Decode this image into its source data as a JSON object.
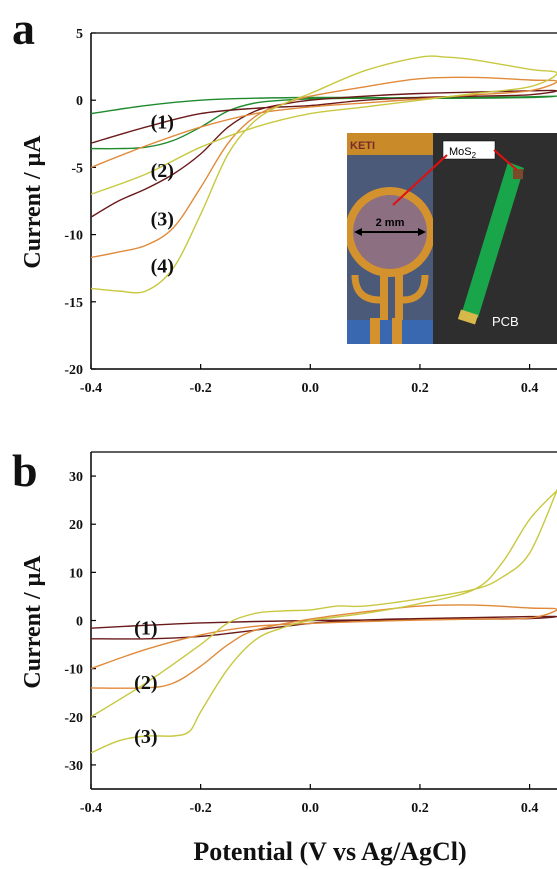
{
  "panels": {
    "a": {
      "label": "a"
    },
    "b": {
      "label": "b"
    }
  },
  "x_axis_label": "Potential (V vs Ag/AgCl)",
  "y_axis_label": "Current / μA",
  "inset": {
    "mos2_prefix": "MoS",
    "mos2_sub": "2",
    "scale_text": "2 mm",
    "pcb_text": "PCB",
    "keti_text": "KETI"
  },
  "colors": {
    "green": "#1f8a2e",
    "darkred": "#6b1a1a",
    "orange": "#e08a3a",
    "yellow": "#c8c840",
    "axis": "#000000"
  },
  "chart_data": [
    {
      "panel": "a",
      "type": "line",
      "xlabel": "",
      "ylabel": "Current / μA",
      "xlim": [
        -0.4,
        0.45
      ],
      "ylim": [
        -20,
        5
      ],
      "xticks": [
        -0.4,
        -0.2,
        0.0,
        0.2,
        0.4
      ],
      "xtick_labels": [
        "-0.4",
        "-0.2",
        "0.0",
        "0.2",
        "0.4"
      ],
      "yticks": [
        5,
        0,
        -5,
        -10,
        -15,
        -20
      ],
      "ytick_labels": [
        "5",
        "0",
        "-5",
        "-10",
        "-15",
        "-20"
      ],
      "curve_labels": [
        {
          "text": "(1)",
          "x": -0.27,
          "y": -1.6
        },
        {
          "text": "(2)",
          "x": -0.27,
          "y": -5.2
        },
        {
          "text": "(3)",
          "x": -0.27,
          "y": -8.8
        },
        {
          "text": "(4)",
          "x": -0.27,
          "y": -12.3
        }
      ],
      "series": [
        {
          "color": "#1f8a2e",
          "x": [
            -0.4,
            -0.35,
            -0.3,
            -0.25,
            -0.2,
            -0.15,
            -0.1,
            -0.05,
            0.0,
            0.1,
            0.2,
            0.3,
            0.4,
            0.45,
            0.4,
            0.3,
            0.2,
            0.1,
            0.0,
            -0.1,
            -0.2,
            -0.3,
            -0.4
          ],
          "y": [
            -3.6,
            -3.6,
            -3.5,
            -3.0,
            -2.0,
            -0.8,
            -0.2,
            0.0,
            0.1,
            0.15,
            0.2,
            0.2,
            0.25,
            0.3,
            0.2,
            0.15,
            0.15,
            0.2,
            0.2,
            0.15,
            0.0,
            -0.4,
            -1.0
          ]
        },
        {
          "color": "#6b1a1a",
          "x": [
            -0.4,
            -0.35,
            -0.3,
            -0.25,
            -0.2,
            -0.15,
            -0.1,
            -0.05,
            0.0,
            0.1,
            0.2,
            0.3,
            0.4,
            0.45,
            0.4,
            0.3,
            0.2,
            0.1,
            0.0,
            -0.1,
            -0.2,
            -0.3,
            -0.4
          ],
          "y": [
            -8.7,
            -7.5,
            -6.6,
            -5.5,
            -4.0,
            -2.0,
            -0.8,
            -0.3,
            0.0,
            0.3,
            0.5,
            0.6,
            0.7,
            0.7,
            0.4,
            0.3,
            0.2,
            0.0,
            -0.4,
            -0.6,
            -1.0,
            -2.0,
            -3.2
          ]
        },
        {
          "color": "#e08a3a",
          "x": [
            -0.4,
            -0.35,
            -0.3,
            -0.25,
            -0.2,
            -0.15,
            -0.1,
            -0.05,
            0.0,
            0.1,
            0.2,
            0.3,
            0.4,
            0.45,
            0.4,
            0.3,
            0.2,
            0.1,
            0.0,
            -0.1,
            -0.2,
            -0.3,
            -0.4
          ],
          "y": [
            -11.7,
            -11.3,
            -10.8,
            -9.5,
            -6.5,
            -3.2,
            -1.2,
            -0.3,
            0.3,
            1.0,
            1.6,
            1.7,
            1.5,
            1.4,
            0.7,
            0.4,
            0.1,
            -0.2,
            -0.5,
            -1.0,
            -2.0,
            -3.4,
            -5.0
          ]
        },
        {
          "color": "#c8c840",
          "x": [
            -0.4,
            -0.35,
            -0.3,
            -0.25,
            -0.2,
            -0.15,
            -0.1,
            -0.05,
            0.0,
            0.1,
            0.2,
            0.25,
            0.3,
            0.4,
            0.45,
            0.4,
            0.3,
            0.2,
            0.1,
            0.0,
            -0.1,
            -0.2,
            -0.3,
            -0.4
          ],
          "y": [
            -14.0,
            -14.2,
            -14.2,
            -12.5,
            -8.5,
            -4.0,
            -1.5,
            -0.3,
            0.5,
            2.2,
            3.2,
            3.2,
            3.0,
            2.3,
            2.0,
            1.0,
            0.5,
            0.0,
            -0.5,
            -1.0,
            -2.0,
            -3.5,
            -5.5,
            -7.0
          ]
        }
      ]
    },
    {
      "panel": "b",
      "type": "line",
      "xlabel": "Potential (V vs Ag/AgCl)",
      "ylabel": "Current / μA",
      "xlim": [
        -0.4,
        0.45
      ],
      "ylim": [
        -35,
        35
      ],
      "xticks": [
        -0.4,
        -0.2,
        0.0,
        0.2,
        0.4
      ],
      "xtick_labels": [
        "-0.4",
        "-0.2",
        "0.0",
        "0.2",
        "0.4"
      ],
      "yticks": [
        30,
        20,
        10,
        0,
        -10,
        -20,
        -30
      ],
      "ytick_labels": [
        "30",
        "20",
        "10",
        "0",
        "-10",
        "-20",
        "-30"
      ],
      "curve_labels": [
        {
          "text": "(1)",
          "x": -0.3,
          "y": -1.5
        },
        {
          "text": "(2)",
          "x": -0.3,
          "y": -12.8
        },
        {
          "text": "(3)",
          "x": -0.3,
          "y": -24.0
        }
      ],
      "series": [
        {
          "color": "#6b1a1a",
          "x": [
            -0.4,
            -0.3,
            -0.2,
            -0.1,
            0.0,
            0.1,
            0.2,
            0.3,
            0.4,
            0.45,
            0.4,
            0.3,
            0.2,
            0.1,
            0.0,
            -0.1,
            -0.2,
            -0.3,
            -0.4
          ],
          "y": [
            -3.8,
            -3.8,
            -3.3,
            -2.0,
            -0.6,
            0.1,
            0.4,
            0.6,
            0.8,
            0.8,
            0.4,
            0.3,
            0.2,
            0.1,
            0.0,
            -0.2,
            -0.5,
            -1.0,
            -1.6
          ]
        },
        {
          "color": "#e08a3a",
          "x": [
            -0.4,
            -0.3,
            -0.25,
            -0.2,
            -0.15,
            -0.1,
            0.0,
            0.1,
            0.2,
            0.3,
            0.4,
            0.45,
            0.4,
            0.3,
            0.2,
            0.1,
            0.0,
            -0.1,
            -0.2,
            -0.3,
            -0.4
          ],
          "y": [
            -14.0,
            -14.0,
            -13.0,
            -9.5,
            -5.0,
            -2.0,
            0.3,
            1.8,
            3.0,
            3.2,
            2.6,
            2.3,
            0.5,
            0.3,
            0.1,
            -0.2,
            -0.6,
            -1.2,
            -3.0,
            -6.0,
            -10.0
          ]
        },
        {
          "color": "#c8c840",
          "x": [
            -0.4,
            -0.35,
            -0.3,
            -0.25,
            -0.22,
            -0.2,
            -0.15,
            -0.1,
            -0.05,
            0.0,
            0.1,
            0.2,
            0.3,
            0.35,
            0.4,
            0.45,
            0.45,
            0.4,
            0.35,
            0.3,
            0.2,
            0.1,
            0.05,
            0.0,
            -0.05,
            -0.1,
            -0.15,
            -0.2,
            -0.3,
            -0.4
          ],
          "y": [
            -27.5,
            -25.0,
            -24.0,
            -24.0,
            -23.0,
            -19.0,
            -10.0,
            -4.0,
            -1.5,
            0.0,
            1.5,
            3.5,
            6.5,
            12.0,
            21.0,
            27.0,
            27.0,
            14.0,
            9.0,
            6.5,
            4.5,
            3.0,
            3.0,
            2.2,
            2.0,
            1.5,
            -0.5,
            -5.0,
            -13.0,
            -20.0
          ]
        }
      ]
    }
  ]
}
